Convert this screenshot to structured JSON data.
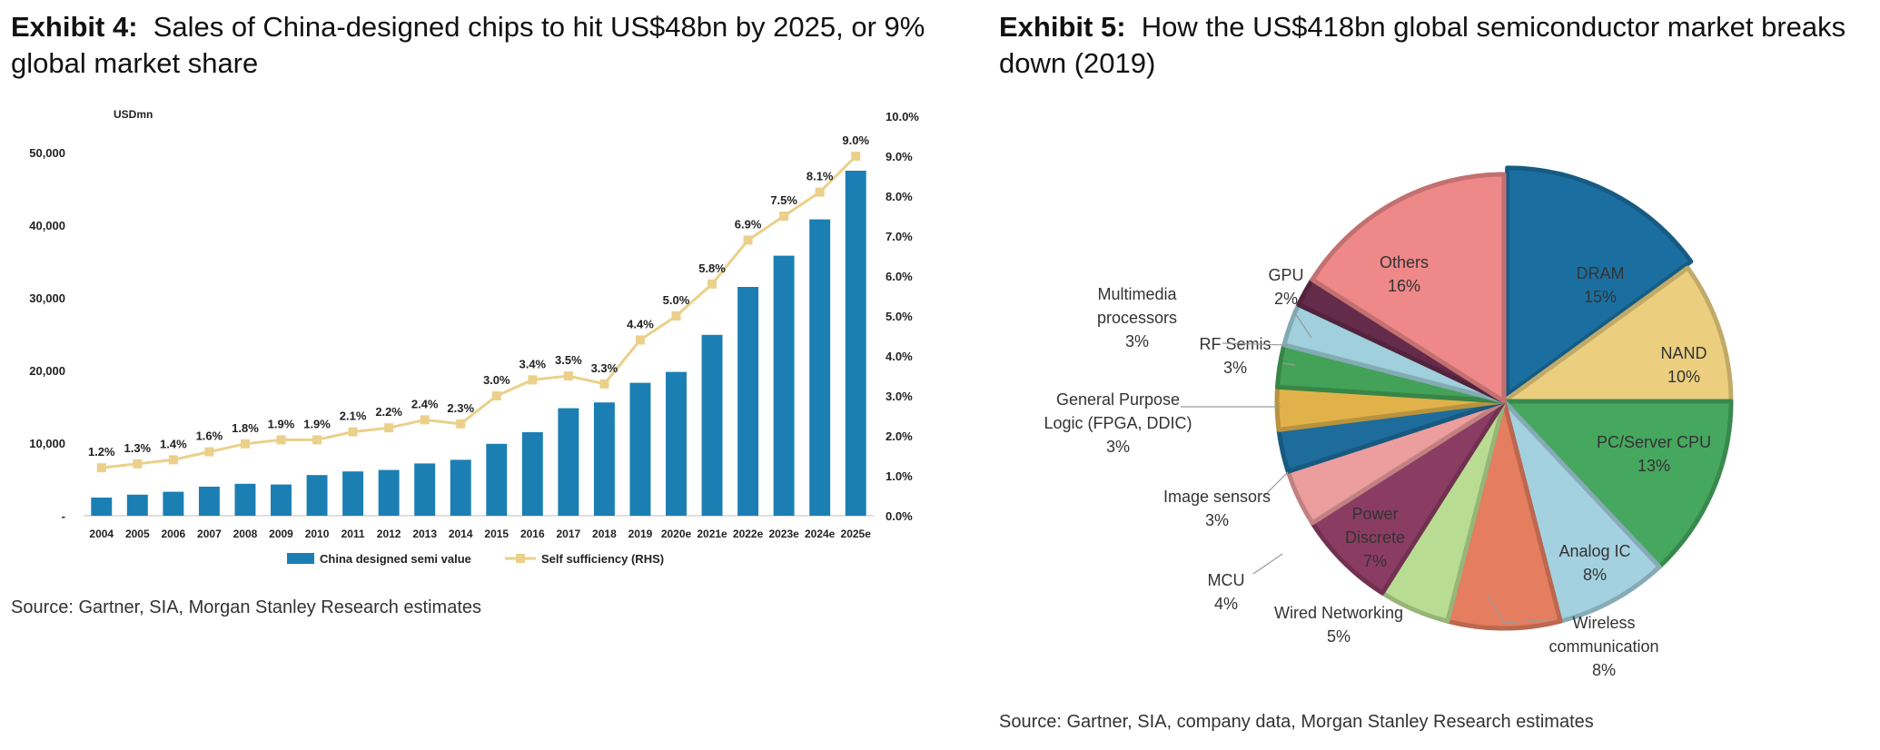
{
  "exhibit4": {
    "label": "Exhibit 4:",
    "title": "Sales of China-designed chips to hit US$48bn by 2025, or 9% global market share",
    "source": "Source: Gartner, SIA, Morgan Stanley Research estimates"
  },
  "exhibit5": {
    "label": "Exhibit 5:",
    "title": "How the US$418bn global semiconductor market breaks down (2019)",
    "source": "Source: Gartner, SIA, company data, Morgan Stanley Research estimates"
  },
  "chart_data": [
    {
      "type": "bar",
      "unit_label": "USDmn",
      "categories": [
        "2004",
        "2005",
        "2006",
        "2007",
        "2008",
        "2009",
        "2010",
        "2011",
        "2012",
        "2013",
        "2014",
        "2015",
        "2016",
        "2017",
        "2018",
        "2019",
        "2020e",
        "2021e",
        "2022e",
        "2023e",
        "2024e",
        "2025e"
      ],
      "series": [
        {
          "name": "China designed semi value",
          "type": "bar",
          "axis": "left",
          "color": "#1b7fb3",
          "values": [
            2500,
            2900,
            3300,
            4000,
            4400,
            4300,
            5600,
            6100,
            6300,
            7200,
            7700,
            9900,
            11500,
            14800,
            15600,
            18300,
            19800,
            24900,
            31500,
            35800,
            40800,
            47500
          ]
        },
        {
          "name": "Self sufficiency (RHS)",
          "type": "line",
          "axis": "right",
          "color": "#ead08a",
          "values": [
            1.2,
            1.3,
            1.4,
            1.6,
            1.8,
            1.9,
            1.9,
            2.1,
            2.2,
            2.4,
            2.3,
            3.0,
            3.4,
            3.5,
            3.3,
            4.4,
            5.0,
            5.8,
            6.9,
            7.5,
            8.1,
            9.0
          ],
          "labels": [
            "1.2%",
            "1.3%",
            "1.4%",
            "1.6%",
            "1.8%",
            "1.9%",
            "1.9%",
            "2.1%",
            "2.2%",
            "2.4%",
            "2.3%",
            "3.0%",
            "3.4%",
            "3.5%",
            "3.3%",
            "4.4%",
            "5.0%",
            "5.8%",
            "6.9%",
            "7.5%",
            "8.1%",
            "9.0%"
          ]
        }
      ],
      "ylim_left": [
        0,
        55000
      ],
      "yticks_left": [
        "-",
        "10,000",
        "20,000",
        "30,000",
        "40,000",
        "50,000"
      ],
      "ylim_right": [
        0,
        10
      ],
      "yticks_right": [
        "0.0%",
        "1.0%",
        "2.0%",
        "3.0%",
        "4.0%",
        "5.0%",
        "6.0%",
        "7.0%",
        "8.0%",
        "9.0%",
        "10.0%"
      ],
      "legend_position": "bottom",
      "grid": false
    },
    {
      "type": "pie",
      "slices": [
        {
          "label": "DRAM",
          "value": 15,
          "pct": "15%",
          "color": "#1b6fa0"
        },
        {
          "label": "NAND",
          "value": 10,
          "pct": "10%",
          "color": "#ebcf7f"
        },
        {
          "label": "PC/Server CPU",
          "value": 13,
          "pct": "13%",
          "color": "#46a75f"
        },
        {
          "label": "Analog IC",
          "value": 8,
          "pct": "8%",
          "color": "#a4d1df"
        },
        {
          "label": "Wireless communication",
          "value": 8,
          "pct": "8%",
          "color": "#e57d5f"
        },
        {
          "label": "Wired Networking",
          "value": 5,
          "pct": "5%",
          "color": "#b8dd92"
        },
        {
          "label": "Power Discrete",
          "value": 7,
          "pct": "7%",
          "color": "#8b3c63"
        },
        {
          "label": "MCU",
          "value": 4,
          "pct": "4%",
          "color": "#ec9d9d"
        },
        {
          "label": "Image sensors",
          "value": 3,
          "pct": "3%",
          "color": "#1d6c9c"
        },
        {
          "label": "General Purpose Logic (FPGA, DDIC)",
          "value": 3,
          "pct": "3%",
          "color": "#e1b24a"
        },
        {
          "label": "RF Semis",
          "value": 3,
          "pct": "3%",
          "color": "#43a257"
        },
        {
          "label": "Multimedia processors",
          "value": 3,
          "pct": "3%",
          "color": "#9fd0dc"
        },
        {
          "label": "GPU",
          "value": 2,
          "pct": "2%",
          "color": "#642b4b"
        },
        {
          "label": "Others",
          "value": 16,
          "pct": "16%",
          "color": "#ee8889"
        }
      ]
    }
  ]
}
